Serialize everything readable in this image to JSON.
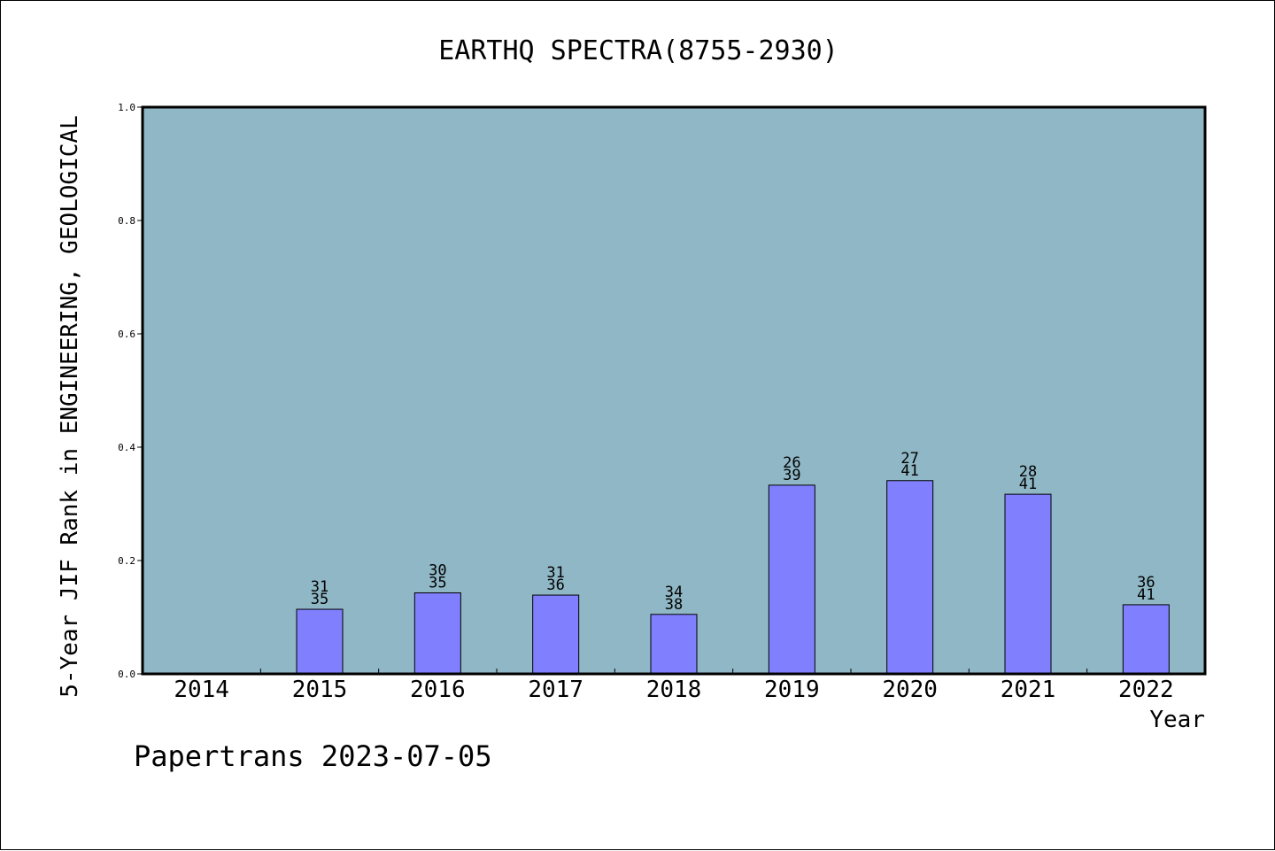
{
  "chart_data": {
    "type": "bar",
    "title": "EARTHQ SPECTRA(8755-2930)",
    "xlabel": "Year",
    "ylabel": "5-Year JIF Rank in ENGINEERING, GEOLOGICAL",
    "ylim": [
      0,
      1.0
    ],
    "yticks": [
      "0.0",
      "0.2",
      "0.4",
      "0.6",
      "0.8",
      "1.0"
    ],
    "categories": [
      "2014",
      "2015",
      "2016",
      "2017",
      "2018",
      "2019",
      "2020",
      "2021",
      "2022"
    ],
    "values": [
      null,
      0.114,
      0.143,
      0.139,
      0.105,
      0.333,
      0.341,
      0.317,
      0.122
    ],
    "labels_rank": [
      "",
      "31",
      "30",
      "31",
      "34",
      "26",
      "27",
      "28",
      "36"
    ],
    "labels_total": [
      "",
      "35",
      "35",
      "36",
      "38",
      "39",
      "41",
      "41",
      "41"
    ],
    "grid": false,
    "legend": "none",
    "colors": {
      "plot_background": "#8fb7c5",
      "bar_fill": "#8080ff",
      "bar_stroke": "#000000"
    }
  },
  "footer": {
    "text": "Papertrans 2023-07-05"
  }
}
